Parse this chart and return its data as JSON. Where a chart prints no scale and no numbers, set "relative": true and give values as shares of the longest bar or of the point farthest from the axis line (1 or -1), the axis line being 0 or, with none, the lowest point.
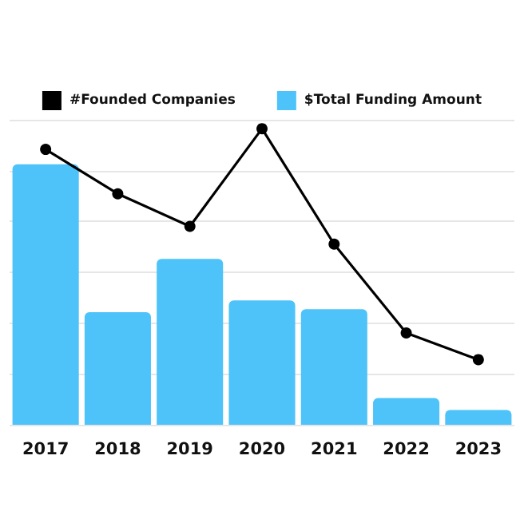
{
  "chart_data": {
    "type": "bar",
    "relative": true,
    "categories": [
      "2017",
      "2018",
      "2019",
      "2020",
      "2021",
      "2022",
      "2023"
    ],
    "series": [
      {
        "name": "#Founded Companies",
        "type": "line",
        "color": "#000000",
        "values": [
          0.93,
          0.78,
          0.67,
          1,
          0.61,
          0.31,
          0.22
        ]
      },
      {
        "name": "$Total Funding Amount",
        "color": "#4dc3fa",
        "values": [
          0.88,
          0.38,
          0.56,
          0.42,
          0.39,
          0.09,
          0.05
        ]
      }
    ],
    "grid": "y",
    "legend": "top",
    "marker": "circle",
    "line_style": "solid"
  }
}
